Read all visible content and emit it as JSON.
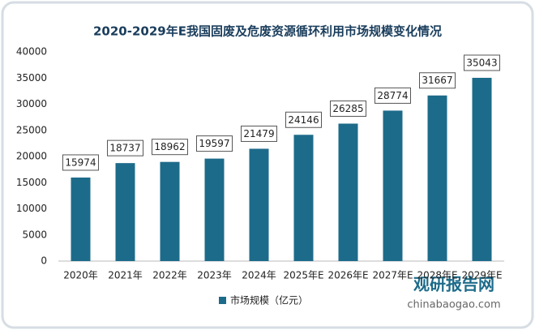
{
  "chart_data": {
    "type": "bar",
    "title": "2020-2029年E我国固废及危废资源循环利用市场规模变化情况",
    "categories": [
      "2020年",
      "2021年",
      "2022年",
      "2023年",
      "2024年",
      "2025年E",
      "2026年E",
      "2027年E",
      "2028年E",
      "2029年E"
    ],
    "series": [
      {
        "name": "市场规模（亿元）",
        "color": "#1d6b8a",
        "values": [
          15974,
          18737,
          18962,
          19597,
          21479,
          24146,
          26285,
          28774,
          31667,
          35043
        ]
      }
    ],
    "ylim": [
      0,
      40000
    ],
    "yticks": [
      0,
      5000,
      10000,
      15000,
      20000,
      25000,
      30000,
      35000,
      40000
    ],
    "grid": false,
    "legend": "bottom",
    "watermark": {
      "name": "观研报告网",
      "url": "chinabaogao.com"
    }
  }
}
